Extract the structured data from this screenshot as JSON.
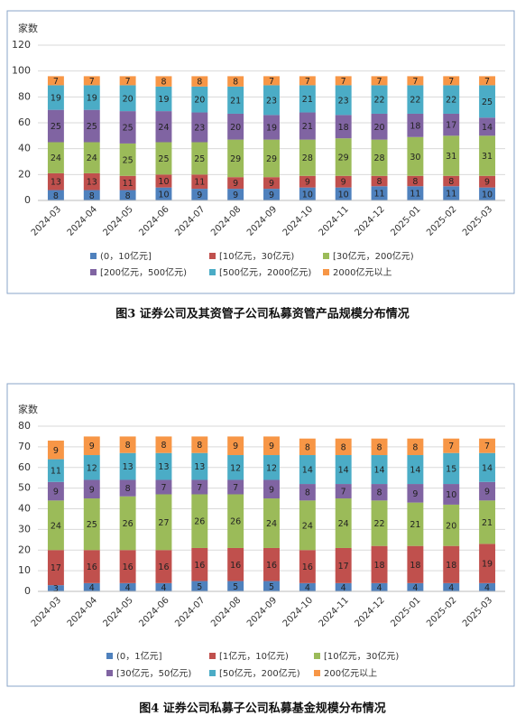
{
  "chart_data": [
    {
      "type": "stacked_bar",
      "title": "图3  证券公司及其资管子公司私募资管产品规模分布情况",
      "y_label": "家数",
      "categories": [
        "2024-03",
        "2024-04",
        "2024-05",
        "2024-06",
        "2024-07",
        "2024-08",
        "2024-09",
        "2024-10",
        "2024-11",
        "2024-12",
        "2025-01",
        "2025-02",
        "2025-03"
      ],
      "ylim": [
        0,
        120
      ],
      "yticks": [
        0,
        20,
        40,
        60,
        80,
        100,
        120
      ],
      "grid": true,
      "series": [
        {
          "name": "(0，10亿元]",
          "color": "#4f81bd",
          "values": [
            8,
            8,
            8,
            10,
            9,
            9,
            9,
            10,
            10,
            11,
            11,
            11,
            10
          ]
        },
        {
          "name": "[10亿元，30亿元)",
          "color": "#c0504d",
          "values": [
            13,
            13,
            11,
            10,
            11,
            9,
            9,
            9,
            9,
            8,
            8,
            8,
            9
          ]
        },
        {
          "name": "[30亿元，200亿元)",
          "color": "#9bbb59",
          "values": [
            24,
            24,
            25,
            25,
            25,
            29,
            29,
            28,
            29,
            28,
            30,
            31,
            31
          ]
        },
        {
          "name": "[200亿元，500亿元)",
          "color": "#8064a2",
          "values": [
            25,
            25,
            25,
            24,
            23,
            20,
            19,
            21,
            18,
            20,
            18,
            17,
            14
          ]
        },
        {
          "name": "[500亿元，2000亿元)",
          "color": "#4bacc6",
          "values": [
            19,
            19,
            20,
            19,
            20,
            21,
            23,
            21,
            23,
            22,
            22,
            22,
            25
          ]
        },
        {
          "name": "2000亿元以上",
          "color": "#f79646",
          "values": [
            7,
            7,
            7,
            8,
            8,
            8,
            7,
            7,
            7,
            7,
            7,
            7,
            7
          ]
        }
      ]
    },
    {
      "type": "stacked_bar",
      "title": "图4  证券公司私募子公司私募基金规模分布情况",
      "y_label": "家数",
      "categories": [
        "2024-03",
        "2024-04",
        "2024-05",
        "2024-06",
        "2024-07",
        "2024-08",
        "2024-09",
        "2024-10",
        "2024-11",
        "2024-12",
        "2025-01",
        "2025-02",
        "2025-03"
      ],
      "ylim": [
        0,
        80
      ],
      "yticks": [
        0,
        10,
        20,
        30,
        40,
        50,
        60,
        70,
        80
      ],
      "grid": true,
      "series": [
        {
          "name": "(0，1亿元]",
          "color": "#4f81bd",
          "values": [
            3,
            4,
            4,
            4,
            5,
            5,
            5,
            4,
            4,
            4,
            4,
            4,
            4
          ]
        },
        {
          "name": "[1亿元，10亿元)",
          "color": "#c0504d",
          "values": [
            17,
            16,
            16,
            16,
            16,
            16,
            16,
            16,
            17,
            18,
            18,
            18,
            19
          ]
        },
        {
          "name": "[10亿元，30亿元)",
          "color": "#9bbb59",
          "values": [
            24,
            25,
            26,
            27,
            26,
            26,
            24,
            24,
            24,
            22,
            21,
            20,
            21
          ]
        },
        {
          "name": "[30亿元，50亿元)",
          "color": "#8064a2",
          "values": [
            9,
            9,
            8,
            7,
            7,
            7,
            9,
            8,
            7,
            8,
            9,
            10,
            9
          ]
        },
        {
          "name": "[50亿元，200亿元)",
          "color": "#4bacc6",
          "values": [
            11,
            12,
            13,
            13,
            13,
            12,
            12,
            14,
            14,
            14,
            14,
            15,
            14
          ]
        },
        {
          "name": "200亿元以上",
          "color": "#f79646",
          "values": [
            9,
            9,
            8,
            8,
            8,
            9,
            9,
            8,
            8,
            8,
            8,
            7,
            7
          ]
        }
      ]
    }
  ]
}
